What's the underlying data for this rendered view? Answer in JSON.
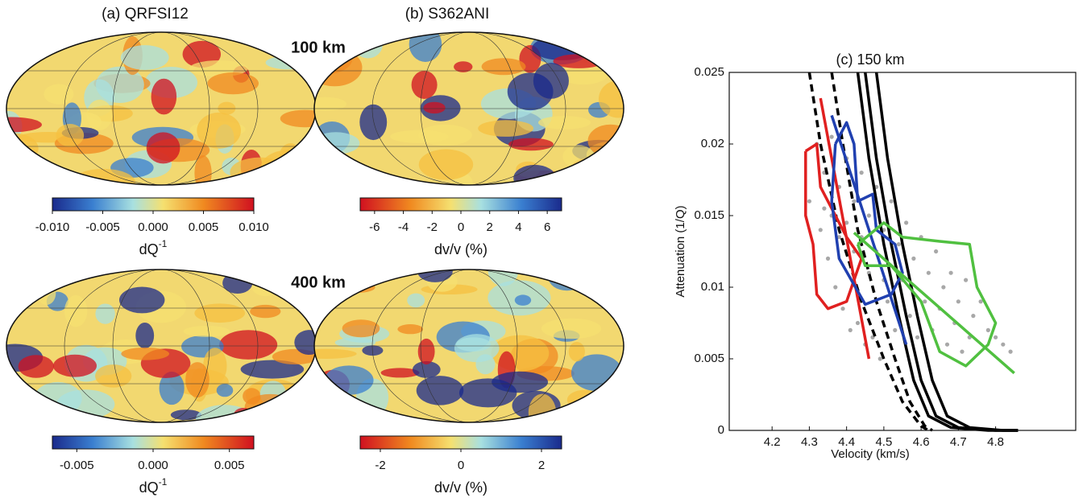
{
  "maps": {
    "panels": [
      {
        "title": "(a) QRFSI12"
      },
      {
        "title": "(b) S362ANI"
      }
    ],
    "depths": [
      "100 km",
      "400 km"
    ],
    "colorbars": [
      {
        "colormap": "blue-red",
        "lim": [
          -0.01,
          0.01
        ],
        "ticks": [
          {
            "value": -0.01,
            "label": "-0.010"
          },
          -0.005,
          {
            "value": 0,
            "label": "0.000"
          },
          0.005,
          {
            "value": 0.01,
            "label": "0.010"
          }
        ],
        "label": {
          "base": "dQ",
          "sup": "-1"
        }
      },
      {
        "colormap": "red-blue",
        "lim": [
          -7,
          7
        ],
        "ticks": [
          -6,
          -4,
          -2,
          0,
          2,
          4,
          6
        ],
        "label": {
          "base": "dv/v (%)"
        }
      },
      {
        "colormap": "blue-red",
        "lim": [
          -0.0066,
          0.0066
        ],
        "ticks": [
          -0.005,
          {
            "value": 0,
            "label": "0.000"
          },
          0.005
        ],
        "label": {
          "base": "dQ",
          "sup": "-1"
        }
      },
      {
        "colormap": "red-blue",
        "lim": [
          -2.5,
          2.5
        ],
        "ticks": [
          -2,
          0,
          2
        ],
        "label": {
          "base": "dv/v (%)"
        }
      }
    ]
  },
  "chart_data": {
    "type": "scatter",
    "title": "(c) 150 km",
    "x_label": "Velocity (km/s)",
    "y_label": "Attenuation (1/Q)",
    "xlim": [
      4.085,
      5.015
    ],
    "ylim": [
      0,
      0.025
    ],
    "xticks": [
      4.2,
      4.3,
      4.4,
      4.5,
      4.6,
      4.7,
      4.8
    ],
    "yticks": [
      0,
      0.005,
      0.01,
      0.015,
      0.02,
      0.025
    ],
    "points": {
      "color": "#a8a8a8",
      "x": [
        4.32,
        4.34,
        4.36,
        4.38,
        4.4,
        4.42,
        4.44,
        4.46,
        4.48,
        4.5,
        4.52,
        4.54,
        4.56,
        4.58,
        4.6,
        4.62,
        4.64,
        4.66,
        4.68,
        4.7,
        4.72,
        4.74,
        4.76,
        4.78,
        4.8,
        4.82,
        4.84,
        4.3,
        4.33,
        4.35,
        4.37,
        4.39,
        4.41,
        4.43,
        4.45,
        4.47,
        4.49,
        4.51,
        4.53,
        4.55,
        4.57,
        4.59,
        4.61,
        4.63,
        4.65,
        4.67,
        4.69,
        4.71,
        4.73,
        4.44,
        4.46,
        4.4,
        4.38,
        4.42,
        4.48,
        4.5,
        4.36,
        4.34
      ],
      "y": [
        0.02,
        0.018,
        0.0205,
        0.017,
        0.019,
        0.016,
        0.018,
        0.015,
        0.017,
        0.014,
        0.016,
        0.013,
        0.0145,
        0.012,
        0.0135,
        0.011,
        0.0125,
        0.01,
        0.011,
        0.009,
        0.0105,
        0.008,
        0.009,
        0.007,
        0.0065,
        0.006,
        0.0055,
        0.016,
        0.014,
        0.012,
        0.01,
        0.0085,
        0.007,
        0.0075,
        0.006,
        0.0065,
        0.005,
        0.009,
        0.007,
        0.0105,
        0.008,
        0.0065,
        0.009,
        0.007,
        0.0085,
        0.006,
        0.0075,
        0.0055,
        0.0065,
        0.0135,
        0.011,
        0.0145,
        0.0135,
        0.0125,
        0.0125,
        0.0105,
        0.015,
        0.0155
      ]
    },
    "series": [
      {
        "color": "#000000",
        "dash": false,
        "x": [
          4.45,
          4.48,
          4.52,
          4.56,
          4.6,
          4.64,
          4.7,
          4.8,
          4.86
        ],
        "y": [
          0.025,
          0.019,
          0.013,
          0.008,
          0.0035,
          0.001,
          0.0002,
          0,
          0
        ]
      },
      {
        "color": "#000000",
        "dash": false,
        "x": [
          4.48,
          4.51,
          4.55,
          4.59,
          4.63,
          4.67,
          4.73,
          4.82,
          4.86
        ],
        "y": [
          0.025,
          0.019,
          0.013,
          0.008,
          0.0035,
          0.001,
          0.0002,
          0,
          0
        ]
      },
      {
        "color": "#000000",
        "dash": false,
        "x": [
          4.43,
          4.46,
          4.5,
          4.54,
          4.58,
          4.62,
          4.68,
          4.78,
          4.86
        ],
        "y": [
          0.025,
          0.019,
          0.013,
          0.008,
          0.0035,
          0.001,
          0.0002,
          0,
          0
        ]
      },
      {
        "color": "#000000",
        "dash": true,
        "x": [
          4.3,
          4.33,
          4.38,
          4.44,
          4.5,
          4.55,
          4.6,
          4.62
        ],
        "y": [
          0.025,
          0.02,
          0.014,
          0.009,
          0.005,
          0.002,
          0.0003,
          0
        ]
      },
      {
        "color": "#000000",
        "dash": true,
        "x": [
          4.36,
          4.39,
          4.43,
          4.48,
          4.53,
          4.57,
          4.61,
          4.63
        ],
        "y": [
          0.025,
          0.02,
          0.014,
          0.009,
          0.005,
          0.002,
          0.0003,
          0
        ]
      },
      {
        "color": "#e02020",
        "dash": false,
        "x": [
          4.29,
          4.32,
          4.33,
          4.4,
          4.44,
          4.4,
          4.35,
          4.32,
          4.31,
          4.29,
          4.29
        ],
        "y": [
          0.0195,
          0.02,
          0.017,
          0.0135,
          0.012,
          0.009,
          0.0085,
          0.0095,
          0.013,
          0.015,
          0.0195
        ]
      },
      {
        "color": "#e02020",
        "dash": false,
        "x": [
          4.33,
          4.46
        ],
        "y": [
          0.0232,
          0.005
        ]
      },
      {
        "color": "#2040b0",
        "dash": false,
        "x": [
          4.37,
          4.4,
          4.42,
          4.43,
          4.47,
          4.48,
          4.53,
          4.55,
          4.52,
          4.45,
          4.38,
          4.36,
          4.37
        ],
        "y": [
          0.02,
          0.0215,
          0.02,
          0.016,
          0.0165,
          0.014,
          0.013,
          0.011,
          0.0095,
          0.0088,
          0.012,
          0.016,
          0.02
        ]
      },
      {
        "color": "#2040b0",
        "dash": false,
        "x": [
          4.36,
          4.56
        ],
        "y": [
          0.022,
          0.006
        ]
      },
      {
        "color": "#50c040",
        "dash": false,
        "x": [
          4.43,
          4.5,
          4.55,
          4.65,
          4.73,
          4.75,
          4.8,
          4.78,
          4.72,
          4.65,
          4.6,
          4.52,
          4.45,
          4.43
        ],
        "y": [
          0.013,
          0.0145,
          0.0135,
          0.0132,
          0.013,
          0.01,
          0.0075,
          0.006,
          0.0045,
          0.0055,
          0.009,
          0.0115,
          0.0115,
          0.013
        ]
      },
      {
        "color": "#50c040",
        "dash": false,
        "x": [
          4.42,
          4.85
        ],
        "y": [
          0.0138,
          0.004
        ]
      }
    ]
  }
}
